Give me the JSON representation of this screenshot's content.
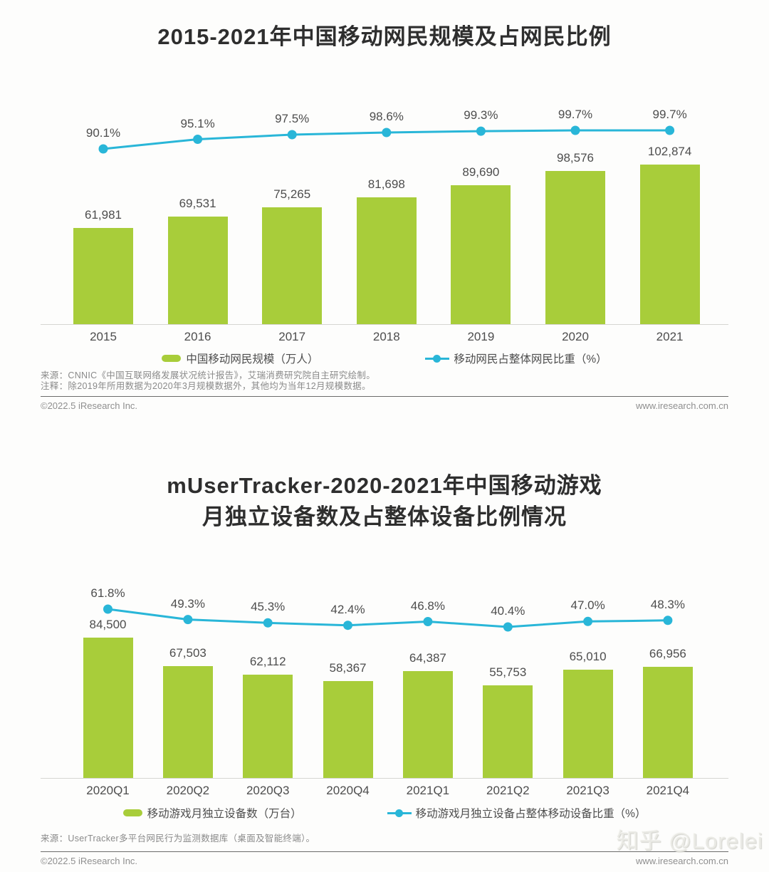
{
  "page": {
    "watermark": "知乎 @Lorelei"
  },
  "colors": {
    "bar_green": "#a8cd3a",
    "line_blue": "#29b6d8",
    "title_text": "#2e2e2e",
    "label_text": "#4d4d4d",
    "source_text": "#8a8a8a",
    "footer_text": "#8f8f8f",
    "axis_line": "#d6d6d2",
    "divider_line": "#6b6b6b"
  },
  "chart_data": [
    {
      "type": "bar+line",
      "title_lines": [
        "2015-2021年中国移动网民规模及占网民比例"
      ],
      "categories": [
        "2015",
        "2016",
        "2017",
        "2018",
        "2019",
        "2020",
        "2021"
      ],
      "series": [
        {
          "name": "中国移动网民规模（万人）",
          "type": "bar",
          "values": [
            61981,
            69531,
            75265,
            81698,
            89690,
            98576,
            102874
          ],
          "labels": [
            "61,981",
            "69,531",
            "75,265",
            "81,698",
            "89,690",
            "98,576",
            "102,874"
          ]
        },
        {
          "name": "移动网民占整体网民比重（%）",
          "type": "line",
          "values": [
            90.1,
            95.1,
            97.5,
            98.6,
            99.3,
            99.7,
            99.7
          ],
          "labels": [
            "90.1%",
            "95.1%",
            "97.5%",
            "98.6%",
            "99.3%",
            "99.7%",
            "99.7%"
          ]
        }
      ],
      "legend": [
        "中国移动网民规模（万人）",
        "移动网民占整体网民比重（%）"
      ],
      "grid": "off",
      "legend_position": "bottom",
      "source_lines": [
        "来源：CNNIC《中国互联网络发展状况统计报告》，艾瑞消费研究院自主研究绘制。",
        "注释：除2019年所用数据为2020年3月规模数据外，其他均为当年12月规模数据。"
      ],
      "footer_left": "©2022.5 iResearch Inc.",
      "footer_right": "www.iresearch.com.cn"
    },
    {
      "type": "bar+line",
      "title_lines": [
        "mUserTracker-2020-2021年中国移动游戏",
        "月独立设备数及占整体设备比例情况"
      ],
      "categories": [
        "2020Q1",
        "2020Q2",
        "2020Q3",
        "2020Q4",
        "2021Q1",
        "2021Q2",
        "2021Q3",
        "2021Q4"
      ],
      "series": [
        {
          "name": "移动游戏月独立设备数（万台）",
          "type": "bar",
          "values": [
            84500,
            67503,
            62112,
            58367,
            64387,
            55753,
            65010,
            66956
          ],
          "labels": [
            "84,500",
            "67,503",
            "62,112",
            "58,367",
            "64,387",
            "55,753",
            "65,010",
            "66,956"
          ]
        },
        {
          "name": "移动游戏月独立设备占整体移动设备比重（%）",
          "type": "line",
          "values": [
            61.8,
            49.3,
            45.3,
            42.4,
            46.8,
            40.4,
            47.0,
            48.3
          ],
          "labels": [
            "61.8%",
            "49.3%",
            "45.3%",
            "42.4%",
            "46.8%",
            "40.4%",
            "47.0%",
            "48.3%"
          ]
        }
      ],
      "legend": [
        "移动游戏月独立设备数（万台）",
        "移动游戏月独立设备占整体移动设备比重（%）"
      ],
      "grid": "off",
      "legend_position": "bottom",
      "source_lines": [
        "来源：UserTracker多平台网民行为监测数据库（桌面及智能终端）。"
      ],
      "footer_left": "©2022.5 iResearch Inc.",
      "footer_right": "www.iresearch.com.cn"
    }
  ]
}
